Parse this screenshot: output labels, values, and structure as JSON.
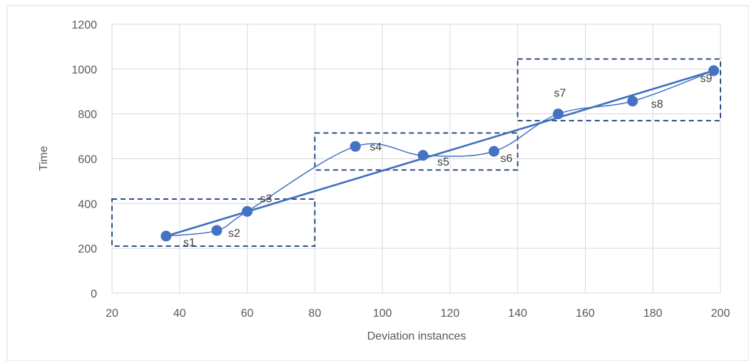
{
  "chart_data": {
    "type": "scatter",
    "xlabel": "Deviation instances",
    "ylabel": "Time",
    "xlim": [
      20,
      200
    ],
    "ylim": [
      0,
      1200
    ],
    "xticks": [
      20,
      40,
      60,
      80,
      100,
      120,
      140,
      160,
      180,
      200
    ],
    "yticks": [
      0,
      200,
      400,
      600,
      800,
      1000,
      1200
    ],
    "grid": true,
    "colors": {
      "series": "#4472c4",
      "trend": "#3f6fbf",
      "box": "#2f4f80"
    },
    "series": [
      {
        "points": [
          {
            "label": "s1",
            "x": 36,
            "y": 255
          },
          {
            "label": "s2",
            "x": 51,
            "y": 280
          },
          {
            "label": "s3",
            "x": 60,
            "y": 365
          },
          {
            "label": "s4",
            "x": 92,
            "y": 655
          },
          {
            "label": "s5",
            "x": 112,
            "y": 615
          },
          {
            "label": "s6",
            "x": 133,
            "y": 633
          },
          {
            "label": "s7",
            "x": 152,
            "y": 800
          },
          {
            "label": "s8",
            "x": 174,
            "y": 857
          },
          {
            "label": "s9",
            "x": 198,
            "y": 993
          }
        ]
      }
    ],
    "trendline": {
      "x": [
        36,
        198
      ],
      "y": [
        255,
        993
      ]
    },
    "groups": [
      {
        "x": [
          20,
          80
        ],
        "y": [
          210,
          420
        ]
      },
      {
        "x": [
          80,
          140
        ],
        "y": [
          550,
          715
        ]
      },
      {
        "x": [
          140,
          200
        ],
        "y": [
          770,
          1045
        ]
      }
    ]
  }
}
